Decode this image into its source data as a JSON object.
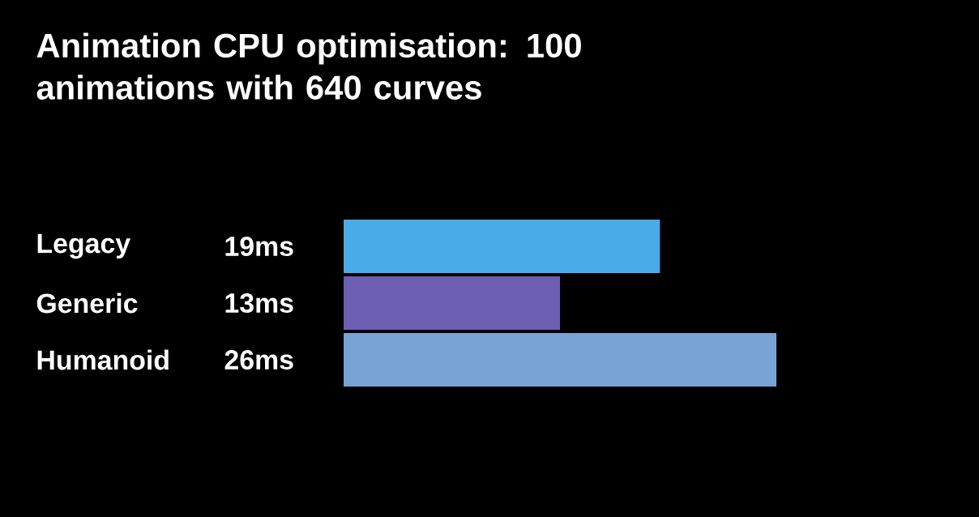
{
  "chart_data": {
    "type": "bar",
    "orientation": "horizontal",
    "title": "Animation CPU optimisation: 100 animations with 640 curves",
    "categories": [
      "Legacy",
      "Generic",
      "Humanoid"
    ],
    "values": [
      19,
      13,
      26
    ],
    "colors": [
      "#4aabe9",
      "#6c5fb4",
      "#7aa3d5"
    ],
    "value_labels": [
      "19ms",
      "13ms",
      "26ms"
    ]
  }
}
